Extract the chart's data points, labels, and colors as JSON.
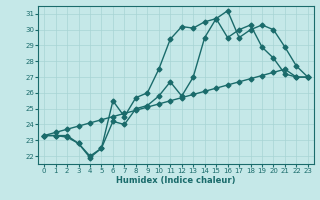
{
  "xlabel": "Humidex (Indice chaleur)",
  "xlim": [
    -0.5,
    23.5
  ],
  "ylim": [
    21.5,
    31.5
  ],
  "yticks": [
    22,
    23,
    24,
    25,
    26,
    27,
    28,
    29,
    30,
    31
  ],
  "xticks": [
    0,
    1,
    2,
    3,
    4,
    5,
    6,
    7,
    8,
    9,
    10,
    11,
    12,
    13,
    14,
    15,
    16,
    17,
    18,
    19,
    20,
    21,
    22,
    23
  ],
  "bg_color": "#c5e8e8",
  "line_color": "#1a6b6b",
  "line1_x": [
    0,
    1,
    2,
    3,
    4,
    5,
    6,
    7,
    8,
    9,
    10,
    11,
    12,
    13,
    14,
    15,
    16,
    17,
    18,
    19,
    20,
    21,
    22,
    23
  ],
  "line1_y": [
    23.3,
    23.3,
    23.3,
    22.8,
    22.0,
    22.5,
    25.5,
    24.5,
    25.7,
    26.0,
    27.5,
    29.4,
    30.2,
    30.1,
    30.5,
    30.7,
    29.5,
    30.0,
    30.3,
    28.9,
    28.2,
    27.2,
    27.0,
    27.0
  ],
  "line2_x": [
    0,
    1,
    2,
    3,
    4,
    5,
    6,
    7,
    8,
    9,
    10,
    11,
    12,
    13,
    14,
    15,
    16,
    17,
    18,
    19,
    20,
    21,
    22,
    23
  ],
  "line2_y": [
    23.3,
    23.3,
    23.2,
    22.8,
    21.9,
    22.5,
    24.2,
    24.0,
    25.0,
    25.2,
    25.8,
    26.7,
    25.8,
    27.0,
    29.5,
    30.7,
    31.2,
    29.5,
    30.0,
    30.3,
    30.0,
    28.9,
    27.7,
    27.0
  ],
  "line3_x": [
    0,
    1,
    2,
    3,
    4,
    5,
    6,
    7,
    8,
    9,
    10,
    11,
    12,
    13,
    14,
    15,
    16,
    17,
    18,
    19,
    20,
    21,
    22,
    23
  ],
  "line3_y": [
    23.3,
    23.5,
    23.7,
    23.9,
    24.1,
    24.3,
    24.5,
    24.7,
    24.9,
    25.1,
    25.3,
    25.5,
    25.7,
    25.9,
    26.1,
    26.3,
    26.5,
    26.7,
    26.9,
    27.1,
    27.3,
    27.5,
    27.0,
    27.0
  ],
  "marker": "D",
  "markersize": 2.5,
  "linewidth": 1.0
}
